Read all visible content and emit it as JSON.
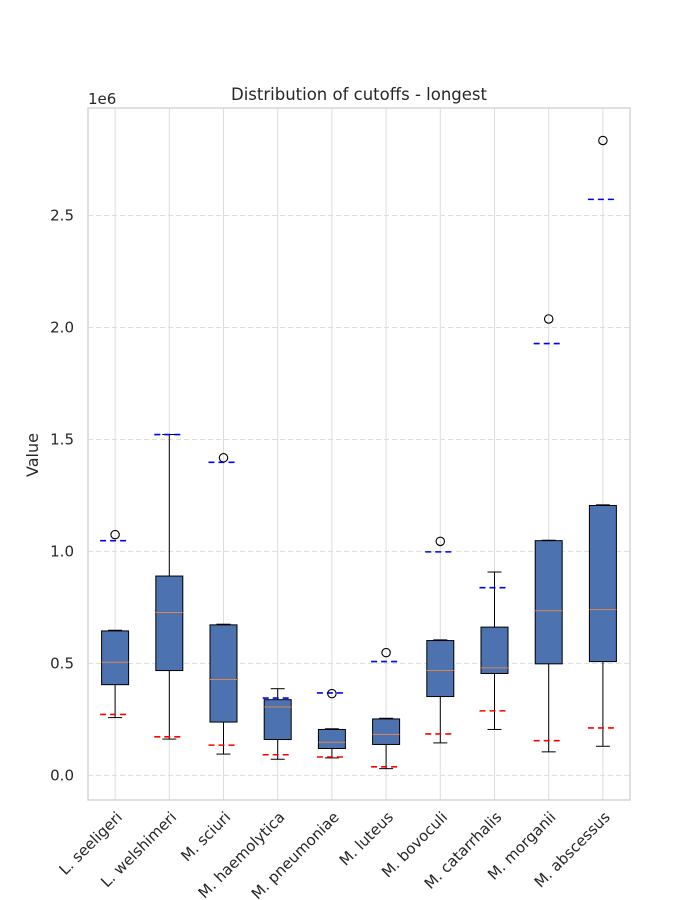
{
  "chart_data": {
    "type": "box",
    "title": "Distribution of cutoffs - longest",
    "ylabel": "Value",
    "xlabel": "",
    "y_scale_label": "1e6",
    "ylim": [
      -110000,
      2980000
    ],
    "yticks": [
      0,
      500000,
      1000000,
      1500000,
      2000000,
      2500000
    ],
    "ytick_labels": [
      "0.0",
      "0.5",
      "1.0",
      "1.5",
      "2.0",
      "2.5"
    ],
    "grid": true,
    "categories": [
      "L. seeligeri",
      "L. welshimeri",
      "M. sciuri",
      "M. haemolytica",
      "M. pneumoniae",
      "M. luteus",
      "M. bovoculi",
      "M. catarrhalis",
      "M. morganii",
      "M. abscessus"
    ],
    "boxes": [
      {
        "q1": 405000,
        "median": 505000,
        "q3": 645000,
        "whisker_low": 258000,
        "whisker_high": 648000,
        "outliers": [
          1075000
        ],
        "low_ref": 272000,
        "high_ref": 1048000
      },
      {
        "q1": 468000,
        "median": 727000,
        "q3": 890000,
        "whisker_low": 162000,
        "whisker_high": 1522000,
        "outliers": [],
        "low_ref": 172000,
        "high_ref": 1522000
      },
      {
        "q1": 238000,
        "median": 428000,
        "q3": 672000,
        "whisker_low": 95000,
        "whisker_high": 675000,
        "outliers": [
          1418000
        ],
        "low_ref": 135000,
        "high_ref": 1398000
      },
      {
        "q1": 160000,
        "median": 305000,
        "q3": 338000,
        "whisker_low": 72000,
        "whisker_high": 387000,
        "outliers": [],
        "low_ref": 92000,
        "high_ref": 345000
      },
      {
        "q1": 120000,
        "median": 148000,
        "q3": 205000,
        "whisker_low": 78000,
        "whisker_high": 208000,
        "outliers": [
          365000
        ],
        "low_ref": 82000,
        "high_ref": 368000
      },
      {
        "q1": 138000,
        "median": 183000,
        "q3": 252000,
        "whisker_low": 30000,
        "whisker_high": 255000,
        "outliers": [
          548000
        ],
        "low_ref": 38000,
        "high_ref": 508000
      },
      {
        "q1": 352000,
        "median": 468000,
        "q3": 602000,
        "whisker_low": 145000,
        "whisker_high": 605000,
        "outliers": [
          1045000
        ],
        "low_ref": 185000,
        "high_ref": 998000
      },
      {
        "q1": 455000,
        "median": 480000,
        "q3": 662000,
        "whisker_low": 205000,
        "whisker_high": 908000,
        "outliers": [],
        "low_ref": 288000,
        "high_ref": 838000
      },
      {
        "q1": 498000,
        "median": 735000,
        "q3": 1048000,
        "whisker_low": 105000,
        "whisker_high": 1050000,
        "outliers": [
          2038000
        ],
        "low_ref": 155000,
        "high_ref": 1928000
      },
      {
        "q1": 508000,
        "median": 740000,
        "q3": 1205000,
        "whisker_low": 130000,
        "whisker_high": 1208000,
        "outliers": [
          2835000
        ],
        "low_ref": 212000,
        "high_ref": 2572000
      }
    ],
    "colors": {
      "box_fill": "#4c72b0",
      "box_edge": "#000000",
      "median": "#dd8452",
      "low_ref": "#ff0000",
      "high_ref": "#0000ff",
      "grid": "#dddddd",
      "spine": "#cccccc"
    }
  }
}
